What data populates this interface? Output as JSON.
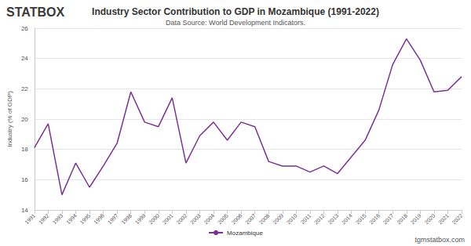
{
  "chart_data": {
    "type": "line",
    "title": "Industry Sector Contribution to GDP in Mozambique (1991-2022)",
    "subtitle": "Data Source: World Development Indicators.",
    "y_label": "Industry (% of GDP)",
    "annotations": [
      "STATBOX",
      "tgmstatbox.com"
    ],
    "categories": [
      "1991",
      "1992",
      "1993",
      "1994",
      "1995",
      "1996",
      "1997",
      "1998",
      "1999",
      "2000",
      "2001",
      "2002",
      "2003",
      "2004",
      "2005",
      "2006",
      "2007",
      "2008",
      "2009",
      "2010",
      "2011",
      "2012",
      "2013",
      "2014",
      "2015",
      "2016",
      "2017",
      "2018",
      "2019",
      "2020",
      "2021",
      "2022"
    ],
    "series": [
      {
        "name": "Mozambique",
        "color": "#7b3294",
        "marker": "none",
        "values": [
          18.1,
          19.7,
          15.0,
          17.1,
          15.5,
          16.9,
          18.4,
          21.8,
          19.8,
          19.5,
          21.4,
          17.1,
          18.9,
          19.8,
          18.6,
          19.8,
          19.5,
          17.2,
          16.9,
          16.9,
          16.5,
          16.9,
          16.4,
          17.5,
          18.6,
          20.6,
          23.6,
          25.3,
          23.9,
          21.8,
          21.9,
          22.8
        ]
      }
    ],
    "ylim": [
      14,
      26
    ],
    "yticks": [
      14,
      16,
      18,
      20,
      22,
      24,
      26
    ],
    "grid": true,
    "legend": "bottom"
  }
}
